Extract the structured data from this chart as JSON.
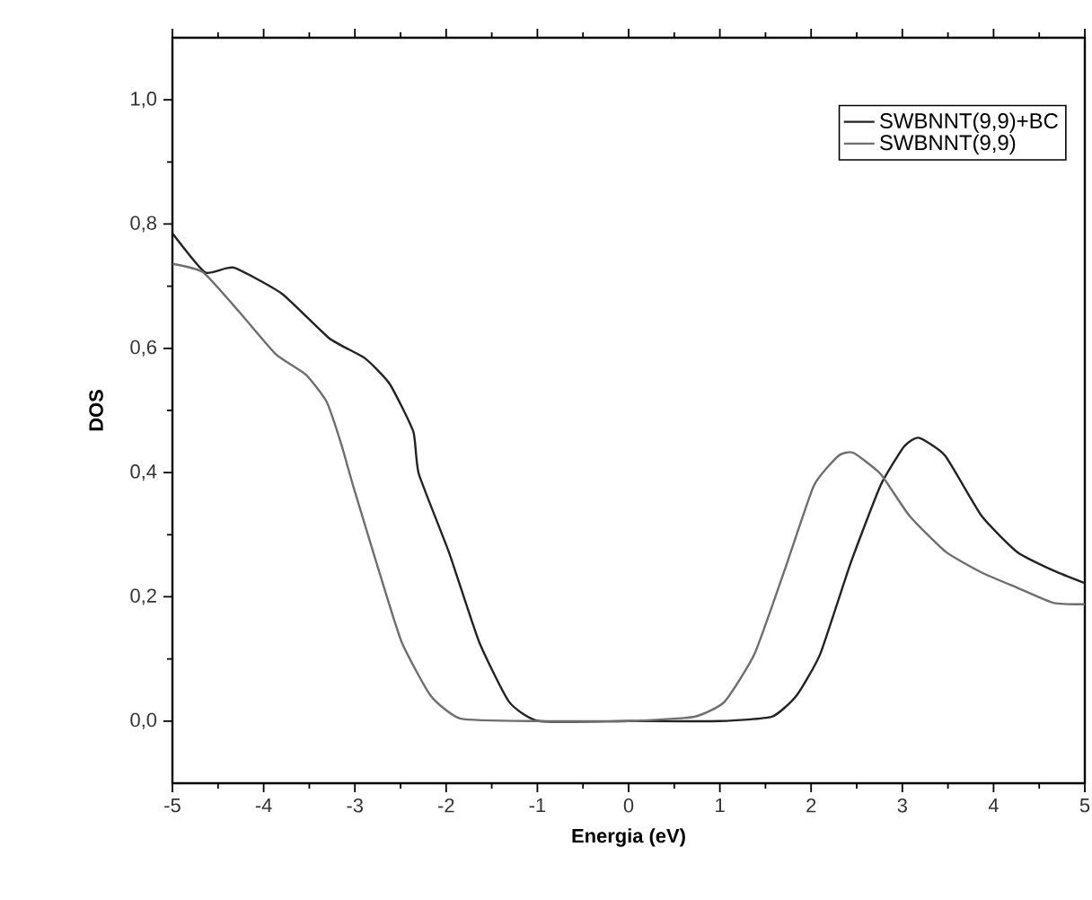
{
  "chart_data": {
    "type": "line",
    "xlabel": "Energia (eV)",
    "ylabel": "DOS",
    "xlim": [
      -5,
      5
    ],
    "ylim": [
      -0.1,
      1.1
    ],
    "xticks": [
      -5,
      -4,
      -3,
      -2,
      -1,
      0,
      1,
      2,
      3,
      4,
      5
    ],
    "yticks": [
      {
        "value": 0,
        "label": "0,0"
      },
      {
        "value": 0.2,
        "label": "0,2"
      },
      {
        "value": 0.4,
        "label": "0,4"
      },
      {
        "value": 0.6,
        "label": "0,6"
      },
      {
        "value": 0.8,
        "label": "0,8"
      },
      {
        "value": 1.0,
        "label": "1,0"
      }
    ],
    "legend": "top right",
    "grid": false,
    "marker": "none",
    "line_style": "solid",
    "series": [
      {
        "name": "SWBNNT(9,9)+BC",
        "color": "#222222",
        "x": [
          -5,
          -4.64,
          -4.33,
          -3.8,
          -3.28,
          -2.89,
          -2.62,
          -2.36,
          -2.3,
          -1.97,
          -1.64,
          -1.31,
          -0.98,
          0,
          1,
          1.57,
          1.84,
          2.1,
          2.43,
          2.76,
          3.02,
          3.18,
          3.47,
          3.87,
          4.26,
          4.66,
          5
        ],
        "values": [
          0.785,
          0.722,
          0.73,
          0.688,
          0.616,
          0.584,
          0.543,
          0.466,
          0.398,
          0.272,
          0.128,
          0.031,
          0.0,
          0.0,
          0.0,
          0.007,
          0.041,
          0.108,
          0.253,
          0.379,
          0.442,
          0.456,
          0.427,
          0.33,
          0.272,
          0.242,
          0.222
        ]
      },
      {
        "name": "SWBNNT(9,9)",
        "color": "#6e6e6e",
        "x": [
          -5,
          -4.66,
          -4.27,
          -3.87,
          -3.54,
          -3.31,
          -3.15,
          -3.02,
          -2.76,
          -2.49,
          -2.17,
          -1.84,
          -1,
          0,
          0.72,
          1.05,
          1.38,
          1.71,
          2.03,
          2.3,
          2.46,
          2.76,
          3.08,
          3.48,
          3.87,
          4.27,
          4.66,
          5
        ],
        "values": [
          0.736,
          0.722,
          0.659,
          0.591,
          0.558,
          0.514,
          0.446,
          0.379,
          0.253,
          0.128,
          0.041,
          0.004,
          0.0,
          0.0,
          0.007,
          0.031,
          0.108,
          0.243,
          0.379,
          0.427,
          0.432,
          0.398,
          0.33,
          0.272,
          0.239,
          0.214,
          0.19,
          0.188
        ]
      }
    ]
  }
}
